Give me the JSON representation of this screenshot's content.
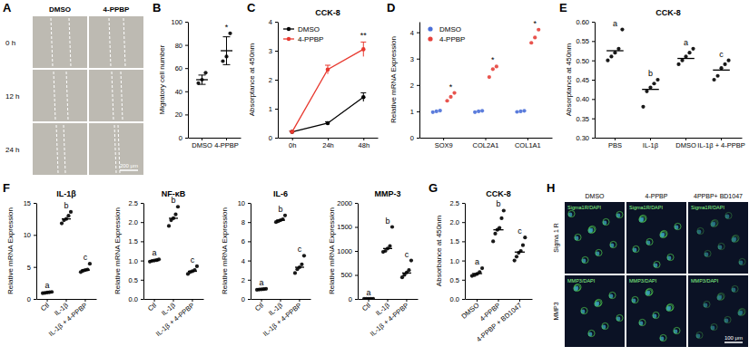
{
  "chart_data": [
    {
      "panel": "B",
      "type": "dot",
      "ylabel": "Migratory cell number",
      "categories": [
        "DMSO",
        "4-PPBP"
      ],
      "points": [
        [
          47,
          50,
          56
        ],
        [
          66,
          70,
          90
        ]
      ],
      "values": [
        50,
        75
      ],
      "errors": [
        4,
        12
      ],
      "annotations": [
        null,
        "*"
      ],
      "ylim": [
        0,
        100
      ],
      "yticks": [
        0,
        20,
        40,
        60,
        80,
        100
      ],
      "color": "#000000",
      "marker": "circle"
    },
    {
      "panel": "C",
      "type": "line",
      "title": "CCK-8",
      "ylabel": "Absorptance at 450nm",
      "categories": [
        "0h",
        "24h",
        "48h"
      ],
      "series": [
        {
          "name": "DMSO",
          "color": "#000000",
          "values": [
            0.2,
            0.5,
            1.4
          ],
          "errors": [
            0.03,
            0.05,
            0.15
          ]
        },
        {
          "name": "4-PPBP",
          "color": "#e8392f",
          "values": [
            0.2,
            2.35,
            3.05
          ],
          "errors": [
            0.03,
            0.15,
            0.25
          ],
          "annotations": [
            null,
            null,
            "**"
          ]
        }
      ],
      "ylim": [
        0,
        4
      ],
      "yticks": [
        0,
        1,
        2,
        3,
        4
      ],
      "legend": "top-left",
      "marker": "circle"
    },
    {
      "panel": "D",
      "type": "dot",
      "ylabel": "Relative mRNA Expression",
      "categories": [
        "SOX9",
        "COL2A1",
        "COL1A1"
      ],
      "series": [
        {
          "name": "DMSO",
          "color": "#4a6fd8",
          "points": [
            [
              0.97,
              1.0,
              1.03
            ],
            [
              0.97,
              1.0,
              1.02
            ],
            [
              0.98,
              1.0,
              1.02
            ]
          ]
        },
        {
          "name": "4-PPBP",
          "color": "#e5413b",
          "points": [
            [
              1.4,
              1.55,
              1.7
            ],
            [
              2.3,
              2.6,
              2.7
            ],
            [
              3.6,
              3.8,
              4.1
            ]
          ],
          "annotations": [
            "*",
            "*",
            "*"
          ]
        }
      ],
      "ylim": [
        0,
        4.4
      ],
      "yticks": [
        0,
        1,
        2,
        3,
        4
      ],
      "legend": "top-left",
      "marker": "circle"
    },
    {
      "panel": "E",
      "type": "dot",
      "title": "CCK-8",
      "ylabel": "Absorptance at 450nm",
      "categories": [
        "PBS",
        "IL-1β",
        "DMSO",
        "IL-1β + 4-PPBP"
      ],
      "points": [
        [
          0.5,
          0.51,
          0.52,
          0.53,
          0.58
        ],
        [
          0.38,
          0.42,
          0.43,
          0.44,
          0.45
        ],
        [
          0.49,
          0.5,
          0.51,
          0.52,
          0.53
        ],
        [
          0.45,
          0.46,
          0.48,
          0.49,
          0.5
        ]
      ],
      "values": [
        0.525,
        0.425,
        0.505,
        0.475
      ],
      "annotations": [
        "a",
        "b",
        "a",
        "c"
      ],
      "ylim": [
        0.3,
        0.6
      ],
      "yticks": [
        {
          "value": 0.3,
          "label": "0.30"
        },
        0.35,
        {
          "value": 0.4,
          "label": "0.40"
        },
        0.45,
        {
          "value": 0.5,
          "label": "0.50"
        },
        0.55,
        {
          "value": 0.6,
          "label": "0.60"
        }
      ],
      "color": "#000000",
      "marker": "circle"
    },
    {
      "panel": "F",
      "type": "dot",
      "title": "IL-1β",
      "ylabel": "Relative mRNA Expression",
      "categories": [
        "Ctl",
        "IL-1β",
        "IL-1β + 4-PPBP"
      ],
      "points": [
        [
          0.9,
          0.95,
          1.0,
          1.05,
          1.1
        ],
        [
          11.8,
          12.3,
          12.5,
          13.0,
          13.6
        ],
        [
          4.2,
          4.4,
          4.5,
          4.6,
          5.5
        ]
      ],
      "values": [
        1.0,
        12.5,
        4.5
      ],
      "annotations": [
        "a",
        "b",
        "c"
      ],
      "ylim": [
        0,
        15
      ],
      "yticks": [
        0,
        5,
        10,
        15
      ],
      "color": "#000000",
      "marker": "circle"
    },
    {
      "type": "dot",
      "title": "NF-κB",
      "ylabel": "Relative mRNA Expression",
      "categories": [
        "Ctl",
        "IL-1β",
        "IL-1β + 4-PPBP"
      ],
      "points": [
        [
          0.97,
          0.99,
          1.0,
          1.01,
          1.03
        ],
        [
          1.9,
          2.05,
          2.1,
          2.2,
          2.4
        ],
        [
          0.65,
          0.7,
          0.72,
          0.75,
          0.85
        ]
      ],
      "values": [
        1.0,
        2.1,
        0.72
      ],
      "annotations": [
        "a",
        "b",
        "c"
      ],
      "ylim": [
        0,
        2.5
      ],
      "yticks": [
        {
          "value": 0,
          "label": "0.0"
        },
        0.5,
        {
          "value": 1,
          "label": "1.0"
        },
        1.5,
        {
          "value": 2,
          "label": "2.0"
        },
        2.5
      ],
      "color": "#000000",
      "marker": "circle"
    },
    {
      "type": "dot",
      "title": "IL-6",
      "ylabel": "Relative mRNA Expression",
      "categories": [
        "Ctl",
        "IL-1β",
        "IL-1β + 4-PPBP"
      ],
      "points": [
        [
          0.95,
          0.98,
          1.0,
          1.02,
          1.05
        ],
        [
          8.0,
          8.1,
          8.2,
          8.3,
          8.7
        ],
        [
          2.7,
          3.1,
          3.3,
          3.6,
          4.5
        ]
      ],
      "values": [
        1.0,
        8.2,
        3.3
      ],
      "annotations": [
        "a",
        "b",
        "c"
      ],
      "ylim": [
        0,
        10
      ],
      "yticks": [
        0,
        2,
        4,
        6,
        8,
        10
      ],
      "color": "#000000",
      "marker": "circle"
    },
    {
      "type": "dot",
      "title": "MMP-3",
      "ylabel": "Relative mRNA Expression",
      "categories": [
        "Ctl",
        "IL-1β",
        "IL-1β + 4-PPBP"
      ],
      "points": [
        [
          1,
          1,
          1,
          1,
          1
        ],
        [
          980,
          1000,
          1050,
          1100,
          1500
        ],
        [
          450,
          500,
          550,
          600,
          800
        ]
      ],
      "values": [
        1,
        1050,
        540
      ],
      "annotations": [
        "a",
        "b",
        "c"
      ],
      "ylim": [
        0,
        2000
      ],
      "yticks": [
        0,
        500,
        1000,
        1500,
        2000
      ],
      "color": "#000000",
      "marker": "circle"
    },
    {
      "panel": "G",
      "type": "dot",
      "title": "CCK-8",
      "ylabel": "Absorbance at 450nm",
      "categories": [
        "DMSO",
        "4-PPBP",
        "4-PPBP + BD1047"
      ],
      "points": [
        [
          0.6,
          0.62,
          0.65,
          0.7,
          0.8
        ],
        [
          1.5,
          1.7,
          1.8,
          1.85,
          2.1,
          2.3
        ],
        [
          1.0,
          1.1,
          1.2,
          1.25,
          1.4,
          1.6
        ]
      ],
      "values": [
        0.66,
        1.8,
        1.22
      ],
      "annotations": [
        "a",
        "b",
        "c"
      ],
      "ylim": [
        0,
        2.5
      ],
      "yticks": [
        {
          "value": 0,
          "label": "0.0"
        },
        0.5,
        {
          "value": 1,
          "label": "1.0"
        },
        1.5,
        {
          "value": 2,
          "label": "2.0"
        },
        2.5
      ],
      "color": "#000000",
      "marker": "circle"
    }
  ],
  "image_panels": [
    {
      "panel": "A",
      "columns": [
        "DMSO",
        "4-PPBP"
      ],
      "rows": [
        "0 h",
        "12 h",
        "24 h"
      ],
      "scale_bar": "200 μm"
    },
    {
      "panel": "H",
      "columns": [
        "DMSO",
        "4-PPBP",
        "4PPBP+ BD1047"
      ],
      "rows": [
        "Sigma 1 R",
        "MMP3"
      ],
      "cell_labels": [
        "Sigma1R/DAPI",
        "MMP3/DAPI"
      ],
      "scale_bar": "100 μm"
    }
  ]
}
